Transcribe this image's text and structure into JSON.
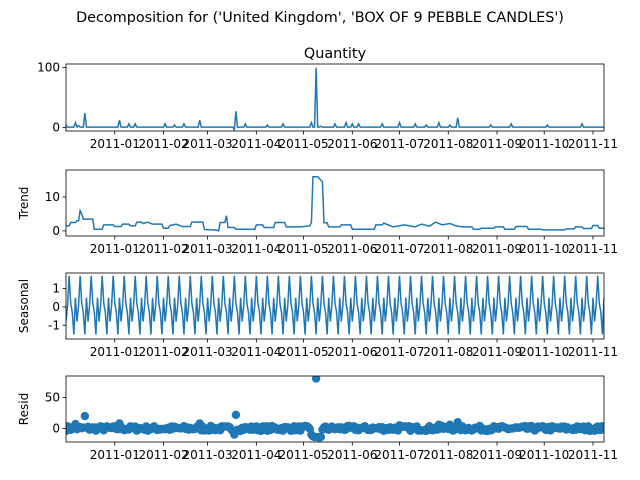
{
  "figure": {
    "suptitle": "Decomposition for ('United Kingdom', 'BOX OF 9 PEBBLE CANDLES')"
  },
  "colors": {
    "series": "#1f77b4",
    "axis": "#000000",
    "background": "#ffffff"
  },
  "chart_data": [
    {
      "type": "line",
      "title": "Quantity",
      "ylabel": "",
      "xlim": [
        "2010-12-01",
        "2011-11-08"
      ],
      "ylim": [
        -6,
        106
      ],
      "yticks": [
        0,
        100
      ],
      "xticks": [
        "2011-01",
        "2011-02",
        "2011-03",
        "2011-04",
        "2011-05",
        "2011-06",
        "2011-07",
        "2011-08",
        "2011-09",
        "2011-10",
        "2011-11"
      ],
      "baseline": 0.5,
      "points": [
        [
          "2010-12-01",
          4
        ],
        [
          "2010-12-07",
          8
        ],
        [
          "2010-12-09",
          3
        ],
        [
          "2010-12-13",
          24
        ],
        [
          "2011-01-04",
          12
        ],
        [
          "2011-01-10",
          6
        ],
        [
          "2011-01-14",
          6
        ],
        [
          "2011-02-02",
          6
        ],
        [
          "2011-02-08",
          4
        ],
        [
          "2011-02-14",
          6
        ],
        [
          "2011-02-24",
          12
        ],
        [
          "2011-03-18",
          -4
        ],
        [
          "2011-03-19",
          27
        ],
        [
          "2011-03-25",
          6
        ],
        [
          "2011-04-08",
          4
        ],
        [
          "2011-04-18",
          6
        ],
        [
          "2011-05-06",
          8
        ],
        [
          "2011-05-09",
          100
        ],
        [
          "2011-05-12",
          2
        ],
        [
          "2011-05-21",
          6
        ],
        [
          "2011-05-28",
          8
        ],
        [
          "2011-06-01",
          6
        ],
        [
          "2011-06-05",
          6
        ],
        [
          "2011-06-20",
          6
        ],
        [
          "2011-07-01",
          8
        ],
        [
          "2011-07-11",
          6
        ],
        [
          "2011-07-18",
          4
        ],
        [
          "2011-07-26",
          8
        ],
        [
          "2011-08-02",
          4
        ],
        [
          "2011-08-07",
          16
        ],
        [
          "2011-08-28",
          4
        ],
        [
          "2011-09-10",
          6
        ],
        [
          "2011-10-03",
          4
        ],
        [
          "2011-10-25",
          6
        ]
      ]
    },
    {
      "type": "line",
      "title": "",
      "ylabel": "Trend",
      "xlim": [
        "2010-12-01",
        "2011-11-08"
      ],
      "ylim": [
        -1.5,
        18
      ],
      "yticks": [
        0,
        10
      ],
      "xticks": [
        "2011-01",
        "2011-02",
        "2011-03",
        "2011-04",
        "2011-05",
        "2011-06",
        "2011-07",
        "2011-08",
        "2011-09",
        "2011-10",
        "2011-11"
      ],
      "points": [
        [
          "2010-12-01",
          1.5
        ],
        [
          "2010-12-03",
          1.5
        ],
        [
          "2010-12-04",
          2.5
        ],
        [
          "2010-12-07",
          2.5
        ],
        [
          "2010-12-08",
          3
        ],
        [
          "2010-12-09",
          3
        ],
        [
          "2010-12-10",
          6
        ],
        [
          "2010-12-11",
          5
        ],
        [
          "2010-12-12",
          3.5
        ],
        [
          "2010-12-18",
          3.5
        ],
        [
          "2010-12-19",
          0.5
        ],
        [
          "2010-12-24",
          0.5
        ],
        [
          "2010-12-25",
          1.8
        ],
        [
          "2010-12-31",
          1.8
        ],
        [
          "2011-01-01",
          1.3
        ],
        [
          "2011-01-05",
          1.3
        ],
        [
          "2011-01-06",
          2
        ],
        [
          "2011-01-10",
          2
        ],
        [
          "2011-01-11",
          1.5
        ],
        [
          "2011-01-14",
          1.5
        ],
        [
          "2011-01-15",
          2.6
        ],
        [
          "2011-01-18",
          2.6
        ],
        [
          "2011-01-19",
          2.2
        ],
        [
          "2011-01-22",
          2.6
        ],
        [
          "2011-01-25",
          2
        ],
        [
          "2011-01-31",
          2
        ],
        [
          "2011-02-01",
          0.8
        ],
        [
          "2011-02-04",
          0.8
        ],
        [
          "2011-02-05",
          1.6
        ],
        [
          "2011-02-09",
          2
        ],
        [
          "2011-02-13",
          1.3
        ],
        [
          "2011-02-18",
          1.3
        ],
        [
          "2011-02-19",
          2.6
        ],
        [
          "2011-02-26",
          2.6
        ],
        [
          "2011-02-27",
          0.4
        ],
        [
          "2011-03-06",
          0.3
        ],
        [
          "2011-03-08",
          0
        ],
        [
          "2011-03-09",
          2.5
        ],
        [
          "2011-03-12",
          2.5
        ],
        [
          "2011-03-13",
          4.5
        ],
        [
          "2011-03-14",
          1
        ],
        [
          "2011-03-18",
          1
        ],
        [
          "2011-03-19",
          0.5
        ],
        [
          "2011-03-31",
          0.5
        ],
        [
          "2011-04-01",
          1.8
        ],
        [
          "2011-04-05",
          1.8
        ],
        [
          "2011-04-06",
          1
        ],
        [
          "2011-04-12",
          1
        ],
        [
          "2011-04-13",
          2.5
        ],
        [
          "2011-04-19",
          2.5
        ],
        [
          "2011-04-20",
          1.2
        ],
        [
          "2011-04-29",
          1.2
        ],
        [
          "2011-05-05",
          1.5
        ],
        [
          "2011-05-06",
          2.5
        ],
        [
          "2011-05-07",
          16
        ],
        [
          "2011-05-10",
          16
        ],
        [
          "2011-05-13",
          14.5
        ],
        [
          "2011-05-14",
          2.4
        ],
        [
          "2011-05-16",
          2.4
        ],
        [
          "2011-05-17",
          1.2
        ],
        [
          "2011-05-24",
          1.2
        ],
        [
          "2011-05-25",
          1.8
        ],
        [
          "2011-05-31",
          1.8
        ],
        [
          "2011-06-01",
          0.5
        ],
        [
          "2011-06-15",
          0.5
        ],
        [
          "2011-06-16",
          1.8
        ],
        [
          "2011-06-20",
          1.8
        ],
        [
          "2011-06-21",
          2.3
        ],
        [
          "2011-06-27",
          1.2
        ],
        [
          "2011-07-04",
          1.8
        ],
        [
          "2011-07-11",
          1.2
        ],
        [
          "2011-07-15",
          2
        ],
        [
          "2011-07-20",
          1.4
        ],
        [
          "2011-07-24",
          2.6
        ],
        [
          "2011-07-28",
          1.8
        ],
        [
          "2011-08-02",
          2.2
        ],
        [
          "2011-08-06",
          1.5
        ],
        [
          "2011-08-10",
          1.2
        ],
        [
          "2011-08-16",
          1.2
        ],
        [
          "2011-08-17",
          0.5
        ],
        [
          "2011-08-21",
          0.5
        ],
        [
          "2011-08-22",
          0.8
        ],
        [
          "2011-08-30",
          0.8
        ],
        [
          "2011-08-31",
          1.2
        ],
        [
          "2011-09-05",
          1.2
        ],
        [
          "2011-09-06",
          0.5
        ],
        [
          "2011-09-12",
          0.5
        ],
        [
          "2011-09-13",
          1.3
        ],
        [
          "2011-09-20",
          1.3
        ],
        [
          "2011-09-21",
          0.5
        ],
        [
          "2011-09-29",
          0.5
        ],
        [
          "2011-09-30",
          0.3
        ],
        [
          "2011-10-14",
          0.3
        ],
        [
          "2011-10-15",
          0.6
        ],
        [
          "2011-10-20",
          0.6
        ],
        [
          "2011-10-21",
          1.2
        ],
        [
          "2011-10-25",
          1.2
        ],
        [
          "2011-10-26",
          0.7
        ],
        [
          "2011-10-31",
          0.7
        ],
        [
          "2011-11-01",
          1.6
        ],
        [
          "2011-11-04",
          1.6
        ],
        [
          "2011-11-05",
          0.8
        ],
        [
          "2011-11-08",
          0.8
        ]
      ]
    },
    {
      "type": "line",
      "title": "",
      "ylabel": "Seasonal",
      "xlim": [
        "2010-12-01",
        "2011-11-08"
      ],
      "ylim": [
        -1.75,
        1.85
      ],
      "yticks": [
        -1,
        0,
        1
      ],
      "xticks": [
        "2011-01",
        "2011-02",
        "2011-03",
        "2011-04",
        "2011-05",
        "2011-06",
        "2011-07",
        "2011-08",
        "2011-09",
        "2011-10",
        "2011-11"
      ],
      "period_days": 7,
      "start": "2010-12-01",
      "pattern": [
        -0.8,
        0.1,
        1.7,
        0.2,
        -0.3,
        -1.5,
        0.5
      ]
    },
    {
      "type": "scatter",
      "title": "",
      "ylabel": "Resid",
      "xlim": [
        "2010-12-01",
        "2011-11-08"
      ],
      "ylim": [
        -22,
        85
      ],
      "yticks": [
        0,
        50
      ],
      "xticks": [
        "2011-01",
        "2011-02",
        "2011-03",
        "2011-04",
        "2011-05",
        "2011-06",
        "2011-07",
        "2011-08",
        "2011-09",
        "2011-10",
        "2011-11"
      ],
      "noise_days": {
        "start": "2010-12-01",
        "end": "2011-11-08",
        "amplitude": 4,
        "seed": 7
      },
      "outliers": [
        [
          "2010-12-07",
          7
        ],
        [
          "2010-12-13",
          20
        ],
        [
          "2011-01-04",
          8
        ],
        [
          "2011-02-24",
          8
        ],
        [
          "2011-03-18",
          -10
        ],
        [
          "2011-03-19",
          22
        ],
        [
          "2011-05-06",
          -10
        ],
        [
          "2011-05-07",
          -13
        ],
        [
          "2011-05-08",
          -14
        ],
        [
          "2011-05-09",
          81
        ],
        [
          "2011-05-10",
          -14
        ],
        [
          "2011-05-11",
          -15
        ],
        [
          "2011-05-12",
          -14
        ],
        [
          "2011-07-01",
          5
        ],
        [
          "2011-07-26",
          6
        ],
        [
          "2011-08-02",
          6
        ],
        [
          "2011-08-07",
          10
        ]
      ]
    }
  ]
}
